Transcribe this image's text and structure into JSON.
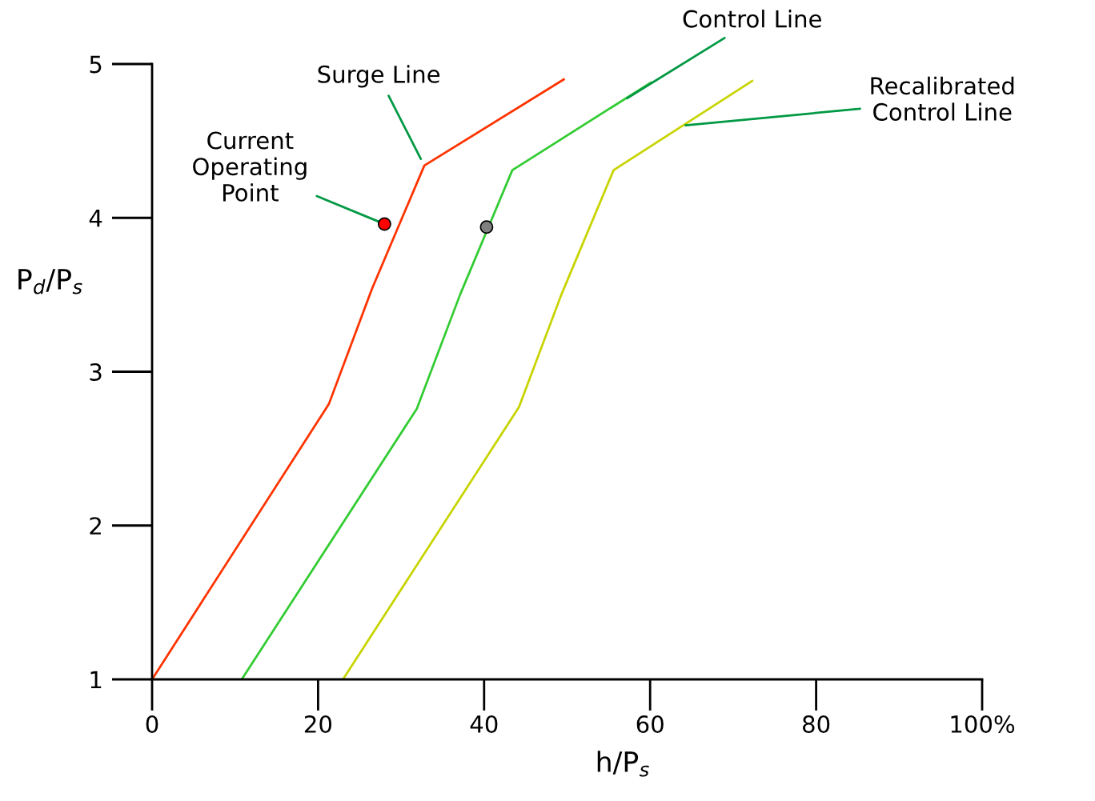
{
  "chart_data": {
    "type": "line",
    "xlabel": "h/P$_{s}$",
    "ylabel": "P$_{d}$/P$_{s}$",
    "xlim": [
      0,
      100
    ],
    "ylim": [
      1,
      5
    ],
    "xticks": [
      0,
      20,
      40,
      60,
      80,
      {
        "value": 100,
        "label": "100%"
      }
    ],
    "yticks": [
      1,
      2,
      3,
      4,
      5
    ],
    "grid": false,
    "marker": "none",
    "line_style": "solid",
    "series": [
      {
        "color": "#ff3300",
        "x": [
          0,
          21.3,
          26.5,
          32.8,
          49.6
        ],
        "values": [
          1,
          2.79,
          3.54,
          4.34,
          4.9
        ]
      },
      {
        "color": "#33cc33",
        "x": [
          10.8,
          31.9,
          37.1,
          43.4,
          60.1
        ],
        "values": [
          1,
          2.76,
          3.5,
          4.31,
          4.88
        ]
      },
      {
        "color": "#c8d400",
        "x": [
          23.0,
          44.2,
          49.3,
          55.6,
          72.3
        ],
        "values": [
          1,
          2.77,
          3.5,
          4.31,
          4.89
        ]
      },
      {
        "type": "scatter",
        "marker": "circle",
        "color": "#ff0000",
        "x": [
          28.0
        ],
        "values": [
          3.96
        ]
      },
      {
        "type": "scatter",
        "marker": "circle",
        "color": "#808080",
        "x": [
          40.3
        ],
        "values": [
          3.94
        ]
      }
    ],
    "annotations": [
      {
        "text": "Surge Line",
        "x": 32.5,
        "y": 4.37
      },
      {
        "text": "Control Line",
        "x": 57,
        "y": 4.77
      },
      {
        "text": "Recalibrated\nControl Line",
        "x": 64,
        "y": 4.6
      },
      {
        "text": "Current\nOperating\nPoint",
        "x": 28.0,
        "y": 3.96
      }
    ]
  }
}
